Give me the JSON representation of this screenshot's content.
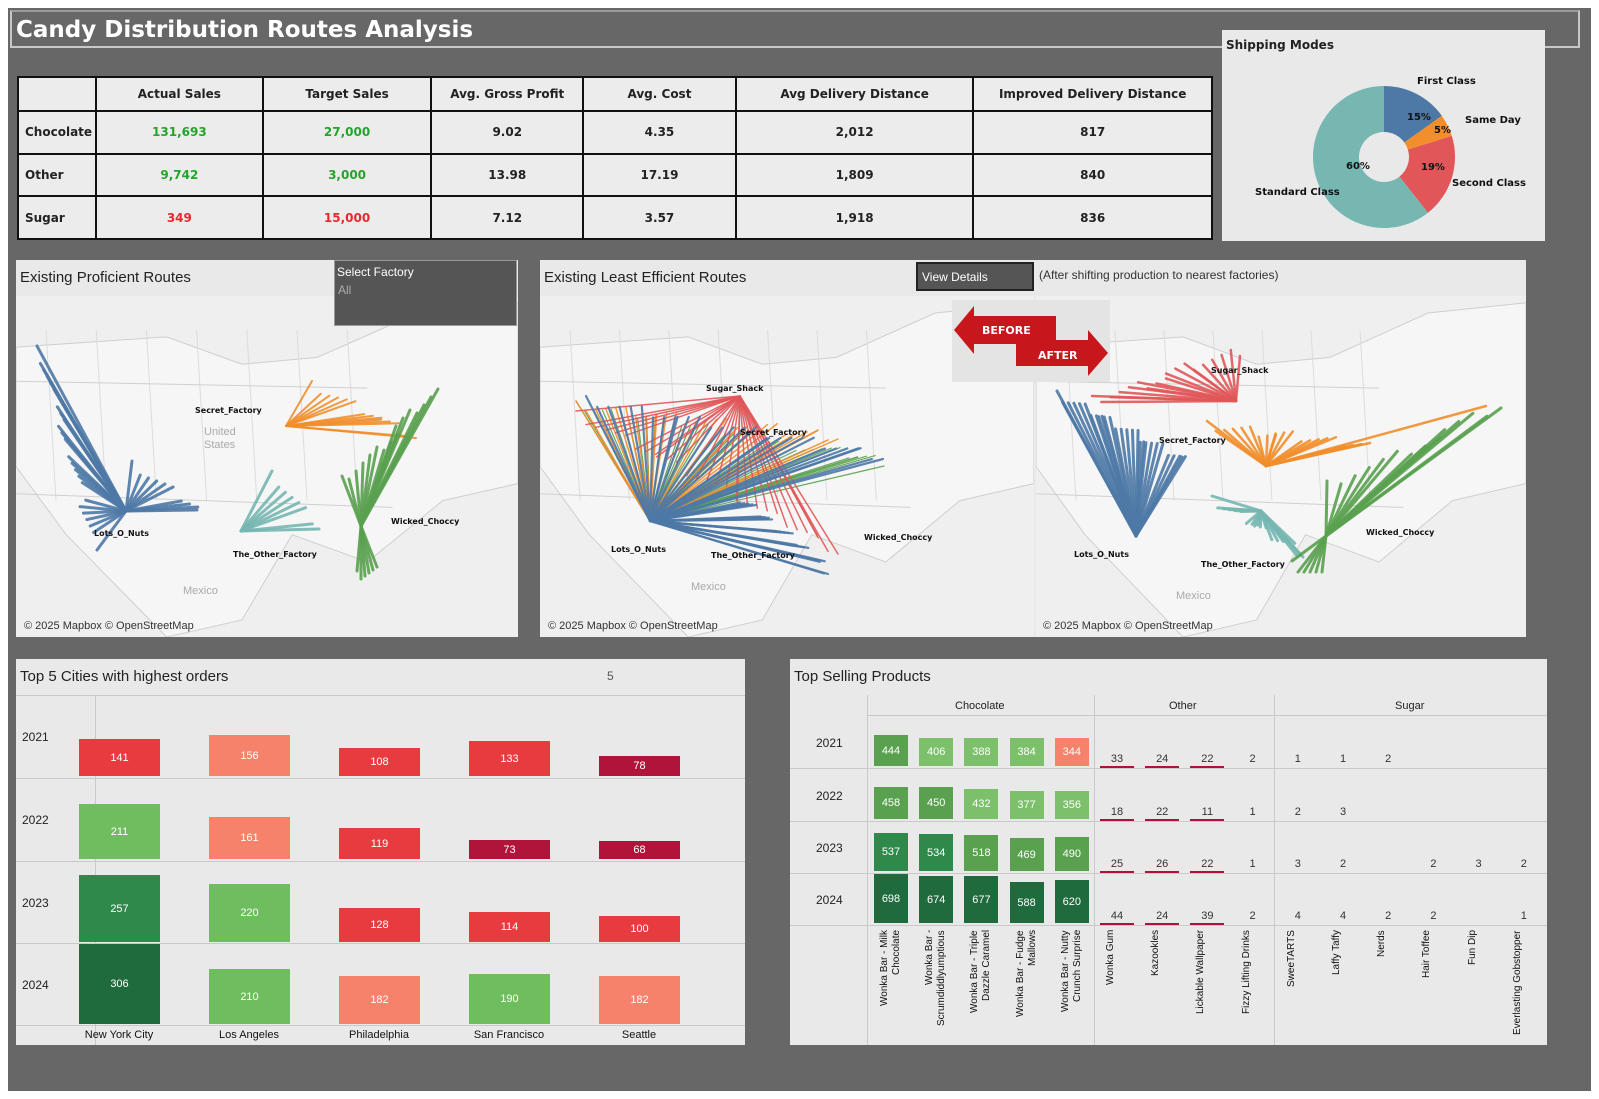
{
  "dashboard": {
    "title": "Candy Distribution Routes Analysis"
  },
  "kpi": {
    "headers": [
      "",
      "Actual Sales",
      "Target Sales",
      "Avg. Gross Profit",
      "Avg. Cost",
      "Avg Delivery Distance",
      "Improved Delivery Distance"
    ],
    "rows": [
      {
        "label": "Chocolate",
        "actual": "131,693",
        "target": "27,000",
        "profit": "9.02",
        "cost": "4.35",
        "dist": "2,012",
        "improved": "817",
        "status": "above"
      },
      {
        "label": "Other",
        "actual": "9,742",
        "target": "3,000",
        "profit": "13.98",
        "cost": "17.19",
        "dist": "1,809",
        "improved": "840",
        "status": "above"
      },
      {
        "label": "Sugar",
        "actual": "349",
        "target": "15,000",
        "profit": "7.12",
        "cost": "3.57",
        "dist": "1,918",
        "improved": "836",
        "status": "below"
      }
    ]
  },
  "shipping": {
    "title": "Shipping Modes",
    "slices": [
      {
        "name": "First Class",
        "pct": 15,
        "label": "15%",
        "color": "#4e79a7"
      },
      {
        "name": "Same Day",
        "pct": 5,
        "label": "5%",
        "color": "#f28e2b"
      },
      {
        "name": "Second Class",
        "pct": 19,
        "label": "19%",
        "color": "#e15759"
      },
      {
        "name": "Standard Class",
        "pct": 60,
        "label": "60%",
        "color": "#76b7b2"
      }
    ]
  },
  "map1": {
    "title": "Existing Proficient Routes",
    "filter_label": "Select Factory",
    "filter_value": "All",
    "attribution": "© 2025 Mapbox © OpenStreetMap",
    "country_label": "United States",
    "country_label_2": "Mexico",
    "factories": [
      "Secret_Factory",
      "Lots_O_Nuts",
      "The_Other_Factory",
      "Wicked_Choccy"
    ]
  },
  "map2": {
    "title": "Existing Least Efficient Routes",
    "button": "View Details",
    "note": "(After shifting production to nearest factories)",
    "before": "BEFORE",
    "after": "AFTER",
    "attribution": "© 2025 Mapbox © OpenStreetMap",
    "attribution_2": "© 2025 Mapbox © OpenStreetMap",
    "mexico": "Mexico",
    "factories": [
      "Sugar_Shack",
      "Secret_Factory",
      "Lots_O_Nuts",
      "The_Other_Factory",
      "Wicked_Choccy"
    ]
  },
  "cities": {
    "title": "Top 5 Cities with highest orders",
    "param": "5",
    "names": [
      "New York City",
      "Los Angeles",
      "Philadelphia",
      "San Francisco",
      "Seattle"
    ],
    "years": [
      "2021",
      "2022",
      "2023",
      "2024"
    ],
    "values": [
      [
        141,
        156,
        108,
        133,
        78
      ],
      [
        211,
        161,
        119,
        73,
        68
      ],
      [
        257,
        220,
        128,
        114,
        100
      ],
      [
        306,
        210,
        182,
        190,
        182
      ]
    ]
  },
  "products": {
    "title": "Top Selling Products",
    "groups": [
      "Chocolate",
      "Other",
      "Sugar"
    ],
    "years": [
      "2021",
      "2022",
      "2023",
      "2024"
    ],
    "names": [
      "Wonka Bar - Milk Chocolate",
      "Wonka Bar - Scrumdiddlyumptious",
      "Wonka Bar - Triple Dazzle Caramel",
      "Wonka Bar - Fudge Mallows",
      "Wonka Bar - Nutty Crunch Surprise",
      "Wonka Gum",
      "Kazookles",
      "Lickable Wallpaper",
      "Fizzy Lifting Drinks",
      "SweeTARTS",
      "Laffy Taffy",
      "Nerds",
      "Hair Toffee",
      "Fun Dip",
      "Everlasting Gobstopper"
    ],
    "values": [
      [
        444,
        406,
        388,
        384,
        344,
        33,
        24,
        22,
        2,
        1,
        1,
        2,
        null,
        null,
        null
      ],
      [
        458,
        450,
        432,
        377,
        356,
        18,
        22,
        11,
        1,
        2,
        3,
        null,
        null,
        null,
        null
      ],
      [
        537,
        534,
        518,
        469,
        490,
        25,
        26,
        22,
        1,
        3,
        2,
        null,
        2,
        3,
        2
      ],
      [
        698,
        674,
        677,
        588,
        620,
        44,
        24,
        39,
        2,
        4,
        4,
        2,
        2,
        null,
        1
      ]
    ]
  },
  "colors": {
    "route_blue": "#4e79a7",
    "route_orange": "#f28e2b",
    "route_green": "#59a14f",
    "route_teal": "#76b7b2",
    "route_red": "#e15759"
  }
}
